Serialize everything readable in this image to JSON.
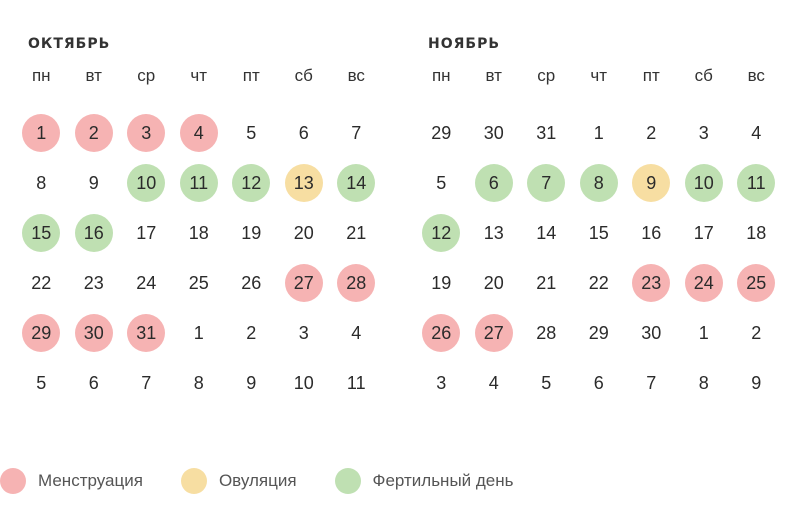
{
  "colors": {
    "menstruation": "#f6b3b3",
    "ovulation": "#f7dea2",
    "fertile": "#bfe0b2"
  },
  "weekdays": [
    "пн",
    "вт",
    "ср",
    "чт",
    "пт",
    "сб",
    "вс"
  ],
  "months": [
    {
      "title": "ОКТЯБРЬ",
      "weeks": [
        [
          {
            "d": "1",
            "t": "m"
          },
          {
            "d": "2",
            "t": "m"
          },
          {
            "d": "3",
            "t": "m"
          },
          {
            "d": "4",
            "t": "m"
          },
          {
            "d": "5"
          },
          {
            "d": "6"
          },
          {
            "d": "7"
          }
        ],
        [
          {
            "d": "8"
          },
          {
            "d": "9"
          },
          {
            "d": "10",
            "t": "f"
          },
          {
            "d": "11",
            "t": "f"
          },
          {
            "d": "12",
            "t": "f"
          },
          {
            "d": "13",
            "t": "o"
          },
          {
            "d": "14",
            "t": "f"
          }
        ],
        [
          {
            "d": "15",
            "t": "f"
          },
          {
            "d": "16",
            "t": "f"
          },
          {
            "d": "17"
          },
          {
            "d": "18"
          },
          {
            "d": "19"
          },
          {
            "d": "20"
          },
          {
            "d": "21"
          }
        ],
        [
          {
            "d": "22"
          },
          {
            "d": "23"
          },
          {
            "d": "24"
          },
          {
            "d": "25"
          },
          {
            "d": "26"
          },
          {
            "d": "27",
            "t": "m"
          },
          {
            "d": "28",
            "t": "m"
          }
        ],
        [
          {
            "d": "29",
            "t": "m"
          },
          {
            "d": "30",
            "t": "m"
          },
          {
            "d": "31",
            "t": "m"
          },
          {
            "d": "1"
          },
          {
            "d": "2"
          },
          {
            "d": "3"
          },
          {
            "d": "4"
          }
        ],
        [
          {
            "d": "5"
          },
          {
            "d": "6"
          },
          {
            "d": "7"
          },
          {
            "d": "8"
          },
          {
            "d": "9"
          },
          {
            "d": "10"
          },
          {
            "d": "11"
          }
        ]
      ]
    },
    {
      "title": "НОЯБРЬ",
      "weeks": [
        [
          {
            "d": "29"
          },
          {
            "d": "30"
          },
          {
            "d": "31"
          },
          {
            "d": "1"
          },
          {
            "d": "2"
          },
          {
            "d": "3"
          },
          {
            "d": "4"
          }
        ],
        [
          {
            "d": "5"
          },
          {
            "d": "6",
            "t": "f"
          },
          {
            "d": "7",
            "t": "f"
          },
          {
            "d": "8",
            "t": "f"
          },
          {
            "d": "9",
            "t": "o"
          },
          {
            "d": "10",
            "t": "f"
          },
          {
            "d": "11",
            "t": "f"
          }
        ],
        [
          {
            "d": "12",
            "t": "f"
          },
          {
            "d": "13"
          },
          {
            "d": "14"
          },
          {
            "d": "15"
          },
          {
            "d": "16"
          },
          {
            "d": "17"
          },
          {
            "d": "18"
          }
        ],
        [
          {
            "d": "19"
          },
          {
            "d": "20"
          },
          {
            "d": "21"
          },
          {
            "d": "22"
          },
          {
            "d": "23",
            "t": "m"
          },
          {
            "d": "24",
            "t": "m"
          },
          {
            "d": "25",
            "t": "m"
          }
        ],
        [
          {
            "d": "26",
            "t": "m"
          },
          {
            "d": "27",
            "t": "m"
          },
          {
            "d": "28"
          },
          {
            "d": "29"
          },
          {
            "d": "30"
          },
          {
            "d": "1"
          },
          {
            "d": "2"
          }
        ],
        [
          {
            "d": "3"
          },
          {
            "d": "4"
          },
          {
            "d": "5"
          },
          {
            "d": "6"
          },
          {
            "d": "7"
          },
          {
            "d": "8"
          },
          {
            "d": "9"
          }
        ]
      ]
    }
  ],
  "legend": [
    {
      "type": "m",
      "label": "Менструация"
    },
    {
      "type": "o",
      "label": "Овуляция"
    },
    {
      "type": "f",
      "label": "Фертильный день"
    }
  ]
}
